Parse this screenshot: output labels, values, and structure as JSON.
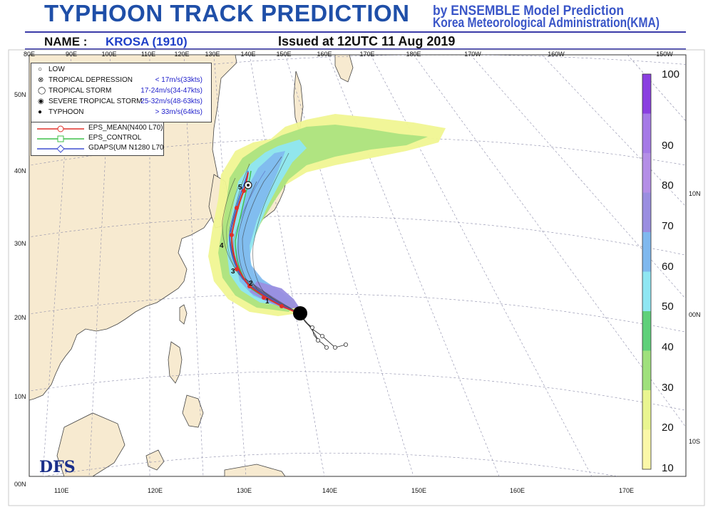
{
  "header": {
    "title": "TYPHOON TRACK PREDICTION",
    "by_line_1": "by ENSEMBLE Model Prediction",
    "by_line_2": "Korea Meteorological Administration(KMA)",
    "name_label": "NAME :",
    "name_value": "KROSA (1910)",
    "issued": "Issued at 12UTC 11 Aug 2019"
  },
  "legend": {
    "intensity": [
      {
        "symbol": "low-icon",
        "label": "LOW",
        "value": ""
      },
      {
        "symbol": "tropical-depression-icon",
        "label": "TROPICAL DEPRESSION",
        "value": "< 17m/s(33kts)"
      },
      {
        "symbol": "tropical-storm-icon",
        "label": "TROPICAL STORM",
        "value": "17-24m/s(34-47kts)"
      },
      {
        "symbol": "severe-tropical-storm-icon",
        "label": "SEVERE TROPICAL STORM",
        "value": "25-32m/s(48-63kts)"
      },
      {
        "symbol": "typhoon-icon",
        "label": "TYPHOON",
        "value": "> 33m/s(64kts)"
      }
    ],
    "tracks": [
      {
        "label": "EPS_MEAN(N400 L70)",
        "color": "#e0302a"
      },
      {
        "label": "EPS_CONTROL",
        "color": "#3fbf4a"
      },
      {
        "label": "GDAPS(UM N1280 L70",
        "color": "#3f4fd0"
      }
    ]
  },
  "top_lon_labels": [
    "80E",
    "90E",
    "100E",
    "110E",
    "120E",
    "130E",
    "140E",
    "150E",
    "160E",
    "170E",
    "180E",
    "170W",
    "160W",
    "150W"
  ],
  "bottom_lon_labels": [
    "110E",
    "120E",
    "130E",
    "140E",
    "150E",
    "160E",
    "170E"
  ],
  "left_lat_labels": [
    "50N",
    "40N",
    "30N",
    "20N",
    "10N",
    "00N"
  ],
  "right_lat_labels": [
    "10N",
    "00N",
    "10S"
  ],
  "colorbar": {
    "ticks": [
      "10",
      "20",
      "30",
      "40",
      "50",
      "60",
      "70",
      "80",
      "90",
      "100"
    ],
    "colors": [
      "#fbf7a8",
      "#e9f590",
      "#9fe07c",
      "#5fd07a",
      "#8fe6f2",
      "#7fb8ee",
      "#9a8ee0",
      "#b48ee6",
      "#a57ae6",
      "#8a3fe0"
    ]
  },
  "day_labels": [
    "1",
    "2",
    "3",
    "4",
    "5"
  ],
  "logo": "DFS",
  "colors": {
    "title": "#1f4fa8",
    "accent": "#3a56c8",
    "ocean": "#ffffff",
    "land": "#f5e6c4",
    "coast": "#444444",
    "grid": "#8a8aa8"
  }
}
